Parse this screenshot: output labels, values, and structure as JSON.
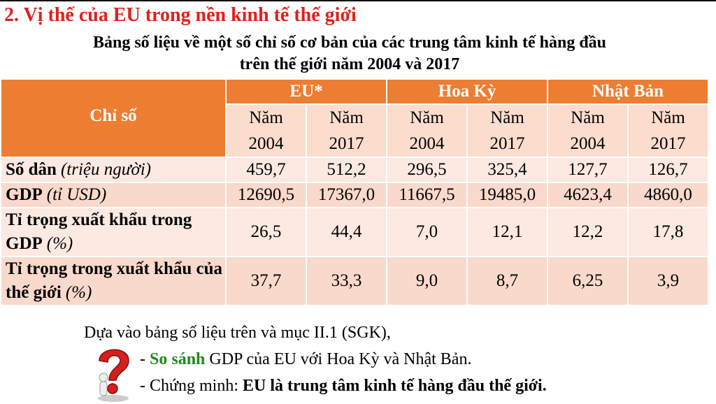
{
  "header": {
    "title": "2. Vị thế của EU trong nền kinh tế thế giới",
    "subtitle": [
      "Bảng số liệu về một số chỉ số cơ bản của các trung tâm kinh tế hàng đầu",
      "trên thế giới năm 2004 và 2017"
    ]
  },
  "table": {
    "corner": "Chỉ số",
    "groups": [
      "EU*",
      "Hoa Kỳ",
      "Nhật Bản"
    ],
    "subheaders": [
      [
        "Năm",
        "2004"
      ],
      [
        "Năm",
        "2017"
      ],
      [
        "Năm",
        "2004"
      ],
      [
        "Năm",
        "2017"
      ],
      [
        "Năm",
        "2004"
      ],
      [
        "Năm",
        "2017"
      ]
    ],
    "rows": [
      {
        "label": "Số dân",
        "unit": "(triệu người)",
        "values": [
          "459,7",
          "512,2",
          "296,5",
          "325,4",
          "127,7",
          "126,7"
        ]
      },
      {
        "label": "GDP",
        "unit": "(tỉ USD)",
        "values": [
          "12690,5",
          "17367,0",
          "11667,5",
          "19485,0",
          "4623,4",
          "4860,0"
        ]
      },
      {
        "label": "Tỉ trọng xuất khẩu trong GDP",
        "unit": "(%)",
        "values": [
          "26,5",
          "44,4",
          "7,0",
          "12,1",
          "12,2",
          "17,8"
        ]
      },
      {
        "label": "Tỉ trọng trong xuất khẩu của thế giới",
        "unit": "(%)",
        "values": [
          "37,7",
          "33,3",
          "9,0",
          "8,7",
          "6,25",
          "3,9"
        ]
      }
    ]
  },
  "task": {
    "intro": "Dựa vào bảng số liệu trên và mục II.1 (SGK),",
    "line1": {
      "dash": "-",
      "highlight": "So sánh",
      "rest": "GDP của EU với Hoa Kỳ và Nhật Bản."
    },
    "line2": {
      "lead": "- Chứng minh:",
      "bold": "EU là trung tâm kinh tế hàng đầu thế giới."
    }
  }
}
